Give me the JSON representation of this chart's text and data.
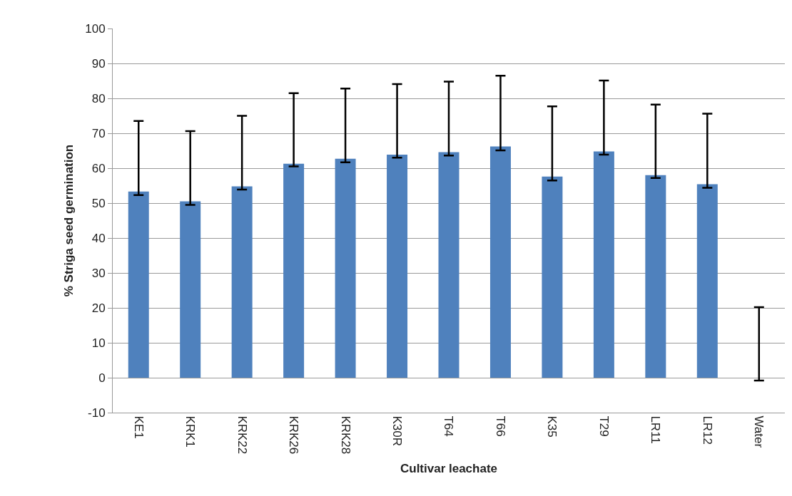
{
  "chart_data": {
    "type": "bar",
    "xlabel": "Cultivar leachate",
    "ylabel": "% Striga seed germination",
    "categories": [
      "KE1",
      "KRK1",
      "KRK22",
      "KRK26",
      "KRK28",
      "K30R",
      "T64",
      "T66",
      "K35",
      "T29",
      "LR11",
      "LR12",
      "Water"
    ],
    "values": [
      53.3,
      50.5,
      54.8,
      61.3,
      62.7,
      63.9,
      64.6,
      66.2,
      57.6,
      64.8,
      58.0,
      55.4,
      0
    ],
    "errors": [
      [
        52.3,
        73.5
      ],
      [
        49.5,
        70.6
      ],
      [
        53.9,
        75.0
      ],
      [
        60.5,
        81.5
      ],
      [
        61.7,
        82.8
      ],
      [
        63.0,
        84.1
      ],
      [
        63.6,
        84.8
      ],
      [
        65.1,
        86.5
      ],
      [
        56.5,
        77.7
      ],
      [
        63.9,
        85.1
      ],
      [
        57.2,
        78.2
      ],
      [
        54.4,
        75.6
      ],
      [
        -0.8,
        20.2
      ]
    ],
    "color": "#4f81bd",
    "ylim": [
      -10,
      100
    ],
    "yticks": [
      -10,
      0,
      10,
      20,
      30,
      40,
      50,
      60,
      70,
      80,
      90,
      100
    ],
    "grid": "y"
  }
}
